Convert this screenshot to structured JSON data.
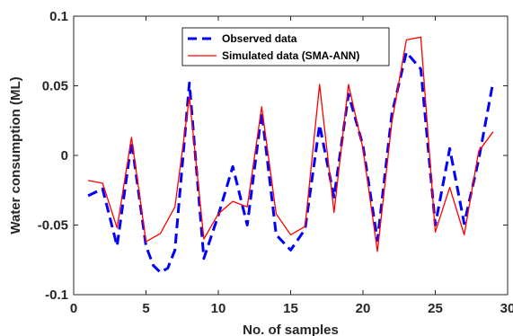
{
  "chart_data": {
    "type": "line",
    "xlabel": "No. of samples",
    "ylabel": "Water consumption (ML)",
    "xlim": [
      0,
      30
    ],
    "ylim": [
      -0.1,
      0.1
    ],
    "xticks": [
      0,
      5,
      10,
      15,
      20,
      25,
      30
    ],
    "yticks": [
      -0.1,
      -0.05,
      0,
      0.05,
      0.1
    ],
    "xtick_labels": [
      "0",
      "5",
      "10",
      "15",
      "20",
      "25",
      "30"
    ],
    "ytick_labels": [
      "-0.1",
      "-0.05",
      "0",
      "0.05",
      "0.1"
    ],
    "grid": false,
    "legend_position": "top-center",
    "series": [
      {
        "name": "Observed data",
        "color": "#0000ff",
        "style": "dashed",
        "x": [
          1,
          2,
          3,
          4,
          5,
          5.5,
          6,
          6.5,
          7,
          8,
          9,
          10,
          11,
          12,
          13,
          14,
          15,
          16,
          17,
          18,
          19,
          20,
          21,
          22,
          23,
          24,
          25,
          26,
          27,
          28,
          29
        ],
        "y": [
          -0.029,
          -0.024,
          -0.065,
          0.01,
          -0.065,
          -0.079,
          -0.084,
          -0.081,
          -0.068,
          0.052,
          -0.074,
          -0.043,
          -0.008,
          -0.05,
          0.031,
          -0.057,
          -0.068,
          -0.053,
          0.022,
          -0.03,
          0.044,
          0.007,
          -0.061,
          0.03,
          0.074,
          0.062,
          -0.05,
          0.005,
          -0.049,
          -0.003,
          0.053
        ]
      },
      {
        "name": "Simulated data (SMA-ANN)",
        "color": "#ff0000",
        "style": "solid",
        "x": [
          1,
          2,
          3,
          4,
          5,
          6,
          7,
          8,
          9,
          10,
          11,
          12,
          13,
          14,
          15,
          16,
          17,
          18,
          19,
          20,
          21,
          22,
          23,
          24,
          25,
          26,
          27,
          28,
          29
        ],
        "y": [
          -0.018,
          -0.02,
          -0.052,
          0.013,
          -0.062,
          -0.056,
          -0.037,
          0.042,
          -0.06,
          -0.042,
          -0.033,
          -0.037,
          0.035,
          -0.042,
          -0.057,
          -0.051,
          0.051,
          -0.041,
          0.051,
          0.005,
          -0.069,
          0.024,
          0.083,
          0.085,
          -0.055,
          -0.023,
          -0.057,
          0.003,
          0.017
        ]
      }
    ]
  }
}
